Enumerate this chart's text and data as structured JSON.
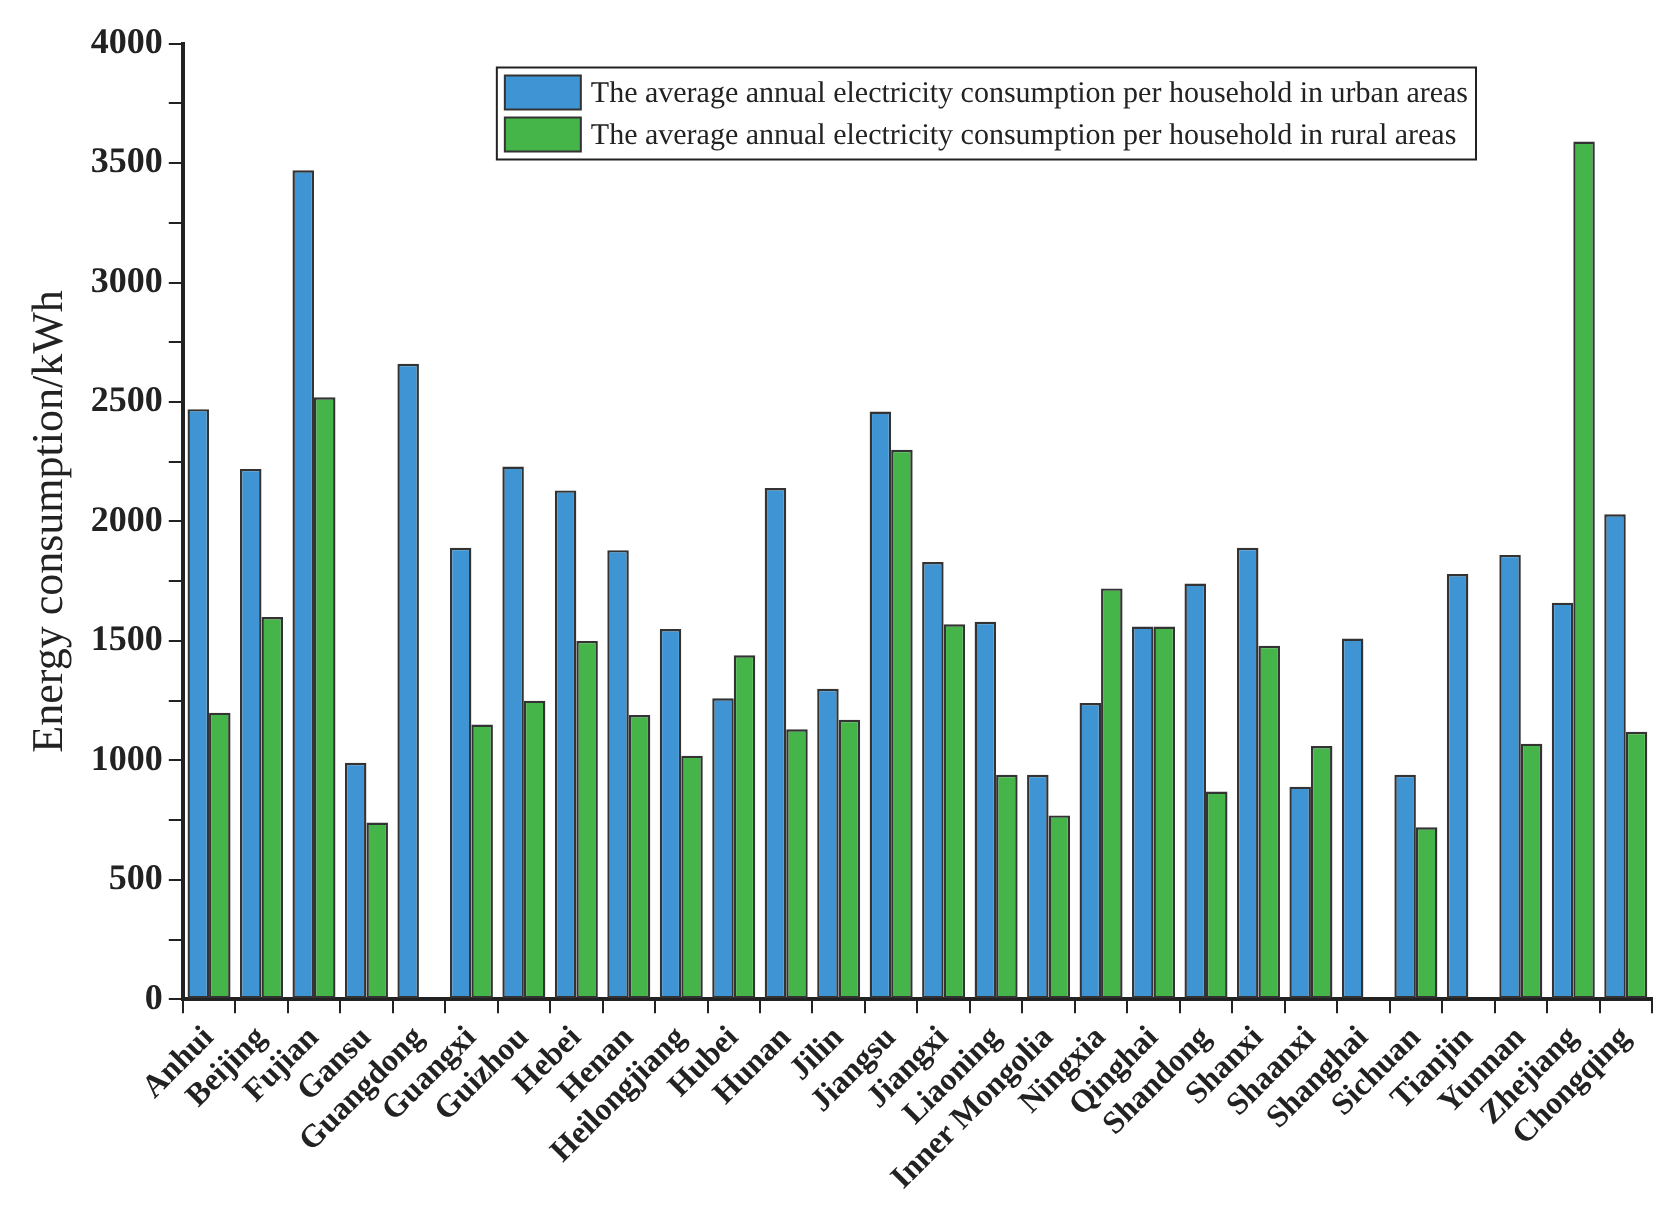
{
  "chart_data": {
    "type": "bar",
    "ylabel": "Energy consumption/kWh",
    "categories": [
      "Anhui",
      "Beijing",
      "Fujian",
      "Gansu",
      "Guangdong",
      "Guangxi",
      "Guizhou",
      "Hebei",
      "Henan",
      "Heilongjiang",
      "Hubei",
      "Hunan",
      "Jilin",
      "Jiangsu",
      "Jiangxi",
      "Liaoning",
      "Inner Mongolia",
      "Ningxia",
      "Qinghai",
      "Shandong",
      "Shanxi",
      "Shaanxi",
      "Shanghai",
      "Sichuan",
      "Tianjin",
      "Yunnan",
      "Zhejiang",
      "Chongqing"
    ],
    "series": [
      {
        "name": "The average annual electricity consumption per household in urban areas",
        "color": "#3f95d3",
        "values": [
          2470,
          2220,
          3470,
          990,
          2660,
          1890,
          2230,
          2130,
          1880,
          1550,
          1260,
          2140,
          1300,
          2460,
          1830,
          1580,
          940,
          1240,
          1560,
          1740,
          1890,
          890,
          1510,
          940,
          1780,
          1860,
          1660,
          2030
        ]
      },
      {
        "name": "The average annual electricity consumption per household in rural areas",
        "color": "#45b549",
        "values": [
          1200,
          1600,
          2520,
          740,
          null,
          1150,
          1250,
          1500,
          1190,
          1020,
          1440,
          1130,
          1170,
          2300,
          1570,
          940,
          770,
          1720,
          1560,
          870,
          1480,
          1060,
          null,
          720,
          null,
          1070,
          3590,
          1120
        ]
      }
    ],
    "ylim": [
      0,
      4000
    ],
    "yticks": [
      0,
      {
        "value": 250,
        "label": null
      },
      500,
      {
        "value": 750,
        "label": null
      },
      1000,
      {
        "value": 1250,
        "label": null
      },
      1500,
      {
        "value": 1750,
        "label": null
      },
      2000,
      {
        "value": 2250,
        "label": null
      },
      2500,
      {
        "value": 2750,
        "label": null
      },
      3000,
      {
        "value": 3250,
        "label": null
      },
      3500,
      {
        "value": 3750,
        "label": null
      },
      4000
    ],
    "grid": false,
    "legend": "top right"
  }
}
